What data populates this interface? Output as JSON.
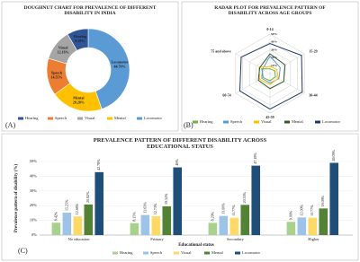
{
  "chart_data": [
    {
      "type": "doughnut",
      "panel_label": "(A)",
      "title": "DOUGHNUT CHART FOR PREVALENCE OF DIFFERENT DISABILITY IN INDIA",
      "categories": [
        "Hearing",
        "Speech",
        "Visual",
        "Mental",
        "Locomotor"
      ],
      "values": [
        8.29,
        14.55,
        12.18,
        20.28,
        44.7
      ],
      "value_labels": [
        "8.29%",
        "14.55%",
        "12.18%",
        "20.28%",
        "44.70%"
      ],
      "colors": [
        "#2f5597",
        "#ed7d31",
        "#a5a5a5",
        "#ffc000",
        "#5b9bd5"
      ]
    },
    {
      "type": "radar",
      "panel_label": "(B)",
      "title": "RADAR PLOT FOR PREVALENCE PATTERN OF DISABILITY ACROSS AGE GROUPS",
      "categories": [
        "0-14",
        "15-29",
        "30-44",
        "45-59",
        "60-74",
        "75 and above"
      ],
      "ylim": [
        0,
        50
      ],
      "yticks": [
        {
          "value": 10,
          "label": "10%"
        },
        {
          "value": 20,
          "label": "20%"
        },
        {
          "value": 30,
          "label": "30%"
        },
        {
          "value": 40,
          "label": "40%"
        },
        {
          "value": 50,
          "label": "50%"
        }
      ],
      "series": [
        {
          "name": "Hearing",
          "color": "#70ad47",
          "values": [
            6,
            7,
            8,
            9,
            10,
            12
          ]
        },
        {
          "name": "Speech",
          "color": "#5b9bd5",
          "values": [
            22,
            15,
            13,
            12,
            12,
            11
          ]
        },
        {
          "name": "Visual",
          "color": "#ffc000",
          "values": [
            9,
            10,
            12,
            14,
            15,
            16
          ]
        },
        {
          "name": "Mental",
          "color": "#375623",
          "values": [
            25,
            22,
            20,
            19,
            17,
            15
          ]
        },
        {
          "name": "Locomotor",
          "color": "#1f3864",
          "values": [
            38,
            46,
            47,
            45,
            44,
            42
          ]
        }
      ]
    },
    {
      "type": "bar",
      "panel_label": "(C)",
      "title": "PREVALENCE PATTERN OF DIFFERENT DISABILITY ACROSS EDUCATIONAL STATUS",
      "xlabel": "Educational status",
      "ylabel": "Prevalence pattern of disability (%)",
      "categories": [
        "No education",
        "Primary",
        "Secondary",
        "Higher"
      ],
      "ylim": [
        0,
        50
      ],
      "yticks": [
        {
          "value": 0,
          "label": "0%"
        },
        {
          "value": 10,
          "label": "10%"
        },
        {
          "value": 20,
          "label": "20%"
        },
        {
          "value": 30,
          "label": "30%"
        },
        {
          "value": 40,
          "label": "40%"
        },
        {
          "value": 50,
          "label": "50%"
        }
      ],
      "series": [
        {
          "name": "Hearing",
          "color": "#a9d18e",
          "values": [
            8.42,
            8.15,
            8.29,
            9
          ],
          "value_labels": [
            "8.42%",
            "8.15%",
            "8.29%",
            "9.00%"
          ]
        },
        {
          "name": "Speech",
          "color": "#9dc3e6",
          "values": [
            15.25,
            13.63,
            13,
            12
          ],
          "value_labels": [
            "15.25%",
            "13.63%",
            "13.00%",
            "12.00%"
          ]
        },
        {
          "name": "Visual",
          "color": "#ffd966",
          "values": [
            12.66,
            12.73,
            11.77,
            11.77
          ],
          "value_labels": [
            "12.66%",
            "12.73%",
            "11.77%",
            "11.77%"
          ]
        },
        {
          "name": "Mental",
          "color": "#548235",
          "values": [
            20.82,
            19.52,
            20.53,
            18.09
          ],
          "value_labels": [
            "20.82%",
            "19.52%",
            "20.53%",
            "18.09%"
          ]
        },
        {
          "name": "Locomotor",
          "color": "#1f4e79",
          "values": [
            42.78,
            46,
            47.18,
            49.09
          ],
          "value_labels": [
            "42.78%",
            "46%",
            "47.18%",
            "49.09%"
          ]
        }
      ]
    }
  ]
}
